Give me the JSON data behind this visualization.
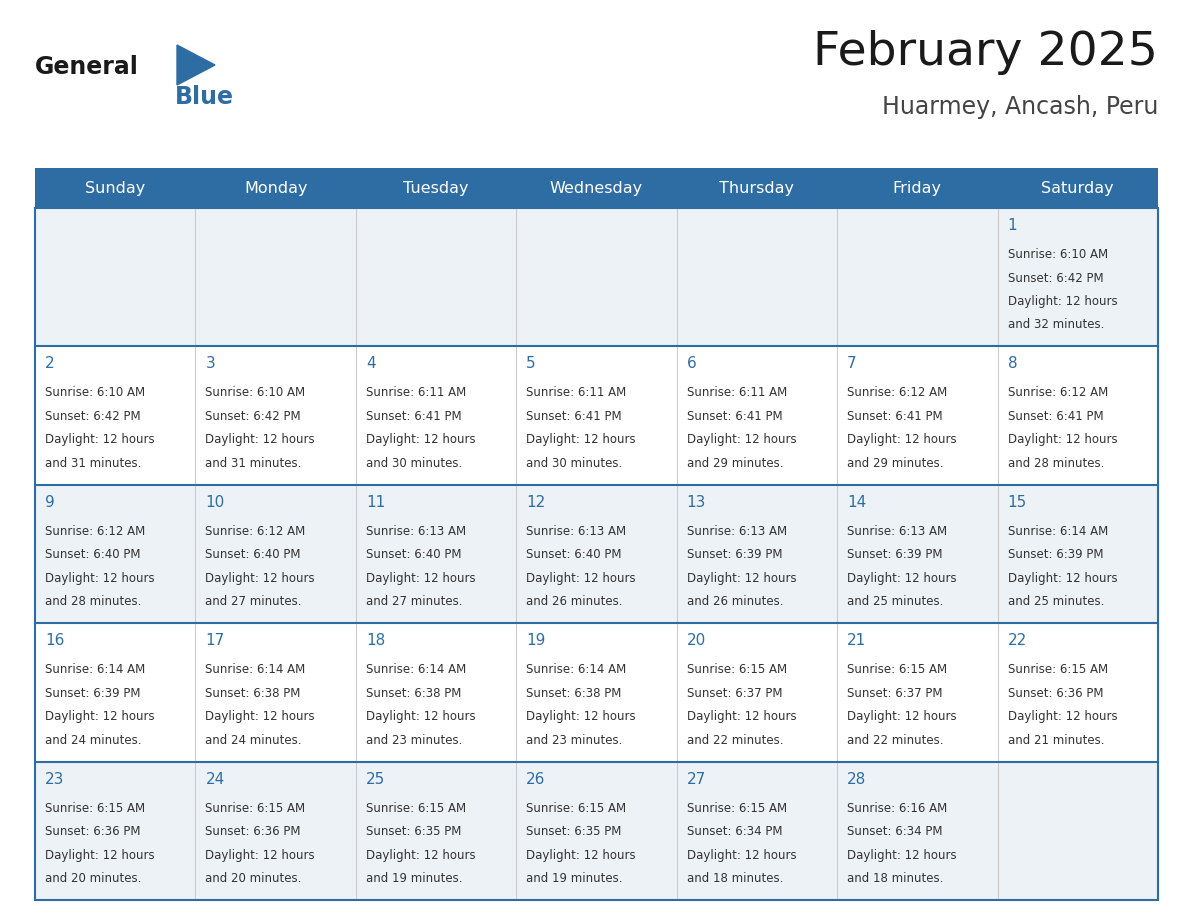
{
  "title": "February 2025",
  "subtitle": "Huarmey, Ancash, Peru",
  "days_of_week": [
    "Sunday",
    "Monday",
    "Tuesday",
    "Wednesday",
    "Thursday",
    "Friday",
    "Saturday"
  ],
  "header_bg": "#2e6da4",
  "header_text": "#ffffff",
  "row_bg_odd": "#ffffff",
  "row_bg_even": "#edf2f7",
  "border_color": "#2e6da4",
  "day_number_color": "#2e6da4",
  "text_color": "#333333",
  "logo_general_color": "#1a1a1a",
  "logo_blue_color": "#2e6da4",
  "logo_triangle_color": "#2e6da4",
  "calendar_data": [
    [
      null,
      null,
      null,
      null,
      null,
      null,
      {
        "day": 1,
        "sunrise": "6:10 AM",
        "sunset": "6:42 PM",
        "daylight_line1": "Daylight: 12 hours",
        "daylight_line2": "and 32 minutes."
      }
    ],
    [
      {
        "day": 2,
        "sunrise": "6:10 AM",
        "sunset": "6:42 PM",
        "daylight_line1": "Daylight: 12 hours",
        "daylight_line2": "and 31 minutes."
      },
      {
        "day": 3,
        "sunrise": "6:10 AM",
        "sunset": "6:42 PM",
        "daylight_line1": "Daylight: 12 hours",
        "daylight_line2": "and 31 minutes."
      },
      {
        "day": 4,
        "sunrise": "6:11 AM",
        "sunset": "6:41 PM",
        "daylight_line1": "Daylight: 12 hours",
        "daylight_line2": "and 30 minutes."
      },
      {
        "day": 5,
        "sunrise": "6:11 AM",
        "sunset": "6:41 PM",
        "daylight_line1": "Daylight: 12 hours",
        "daylight_line2": "and 30 minutes."
      },
      {
        "day": 6,
        "sunrise": "6:11 AM",
        "sunset": "6:41 PM",
        "daylight_line1": "Daylight: 12 hours",
        "daylight_line2": "and 29 minutes."
      },
      {
        "day": 7,
        "sunrise": "6:12 AM",
        "sunset": "6:41 PM",
        "daylight_line1": "Daylight: 12 hours",
        "daylight_line2": "and 29 minutes."
      },
      {
        "day": 8,
        "sunrise": "6:12 AM",
        "sunset": "6:41 PM",
        "daylight_line1": "Daylight: 12 hours",
        "daylight_line2": "and 28 minutes."
      }
    ],
    [
      {
        "day": 9,
        "sunrise": "6:12 AM",
        "sunset": "6:40 PM",
        "daylight_line1": "Daylight: 12 hours",
        "daylight_line2": "and 28 minutes."
      },
      {
        "day": 10,
        "sunrise": "6:12 AM",
        "sunset": "6:40 PM",
        "daylight_line1": "Daylight: 12 hours",
        "daylight_line2": "and 27 minutes."
      },
      {
        "day": 11,
        "sunrise": "6:13 AM",
        "sunset": "6:40 PM",
        "daylight_line1": "Daylight: 12 hours",
        "daylight_line2": "and 27 minutes."
      },
      {
        "day": 12,
        "sunrise": "6:13 AM",
        "sunset": "6:40 PM",
        "daylight_line1": "Daylight: 12 hours",
        "daylight_line2": "and 26 minutes."
      },
      {
        "day": 13,
        "sunrise": "6:13 AM",
        "sunset": "6:39 PM",
        "daylight_line1": "Daylight: 12 hours",
        "daylight_line2": "and 26 minutes."
      },
      {
        "day": 14,
        "sunrise": "6:13 AM",
        "sunset": "6:39 PM",
        "daylight_line1": "Daylight: 12 hours",
        "daylight_line2": "and 25 minutes."
      },
      {
        "day": 15,
        "sunrise": "6:14 AM",
        "sunset": "6:39 PM",
        "daylight_line1": "Daylight: 12 hours",
        "daylight_line2": "and 25 minutes."
      }
    ],
    [
      {
        "day": 16,
        "sunrise": "6:14 AM",
        "sunset": "6:39 PM",
        "daylight_line1": "Daylight: 12 hours",
        "daylight_line2": "and 24 minutes."
      },
      {
        "day": 17,
        "sunrise": "6:14 AM",
        "sunset": "6:38 PM",
        "daylight_line1": "Daylight: 12 hours",
        "daylight_line2": "and 24 minutes."
      },
      {
        "day": 18,
        "sunrise": "6:14 AM",
        "sunset": "6:38 PM",
        "daylight_line1": "Daylight: 12 hours",
        "daylight_line2": "and 23 minutes."
      },
      {
        "day": 19,
        "sunrise": "6:14 AM",
        "sunset": "6:38 PM",
        "daylight_line1": "Daylight: 12 hours",
        "daylight_line2": "and 23 minutes."
      },
      {
        "day": 20,
        "sunrise": "6:15 AM",
        "sunset": "6:37 PM",
        "daylight_line1": "Daylight: 12 hours",
        "daylight_line2": "and 22 minutes."
      },
      {
        "day": 21,
        "sunrise": "6:15 AM",
        "sunset": "6:37 PM",
        "daylight_line1": "Daylight: 12 hours",
        "daylight_line2": "and 22 minutes."
      },
      {
        "day": 22,
        "sunrise": "6:15 AM",
        "sunset": "6:36 PM",
        "daylight_line1": "Daylight: 12 hours",
        "daylight_line2": "and 21 minutes."
      }
    ],
    [
      {
        "day": 23,
        "sunrise": "6:15 AM",
        "sunset": "6:36 PM",
        "daylight_line1": "Daylight: 12 hours",
        "daylight_line2": "and 20 minutes."
      },
      {
        "day": 24,
        "sunrise": "6:15 AM",
        "sunset": "6:36 PM",
        "daylight_line1": "Daylight: 12 hours",
        "daylight_line2": "and 20 minutes."
      },
      {
        "day": 25,
        "sunrise": "6:15 AM",
        "sunset": "6:35 PM",
        "daylight_line1": "Daylight: 12 hours",
        "daylight_line2": "and 19 minutes."
      },
      {
        "day": 26,
        "sunrise": "6:15 AM",
        "sunset": "6:35 PM",
        "daylight_line1": "Daylight: 12 hours",
        "daylight_line2": "and 19 minutes."
      },
      {
        "day": 27,
        "sunrise": "6:15 AM",
        "sunset": "6:34 PM",
        "daylight_line1": "Daylight: 12 hours",
        "daylight_line2": "and 18 minutes."
      },
      {
        "day": 28,
        "sunrise": "6:16 AM",
        "sunset": "6:34 PM",
        "daylight_line1": "Daylight: 12 hours",
        "daylight_line2": "and 18 minutes."
      },
      null
    ]
  ]
}
